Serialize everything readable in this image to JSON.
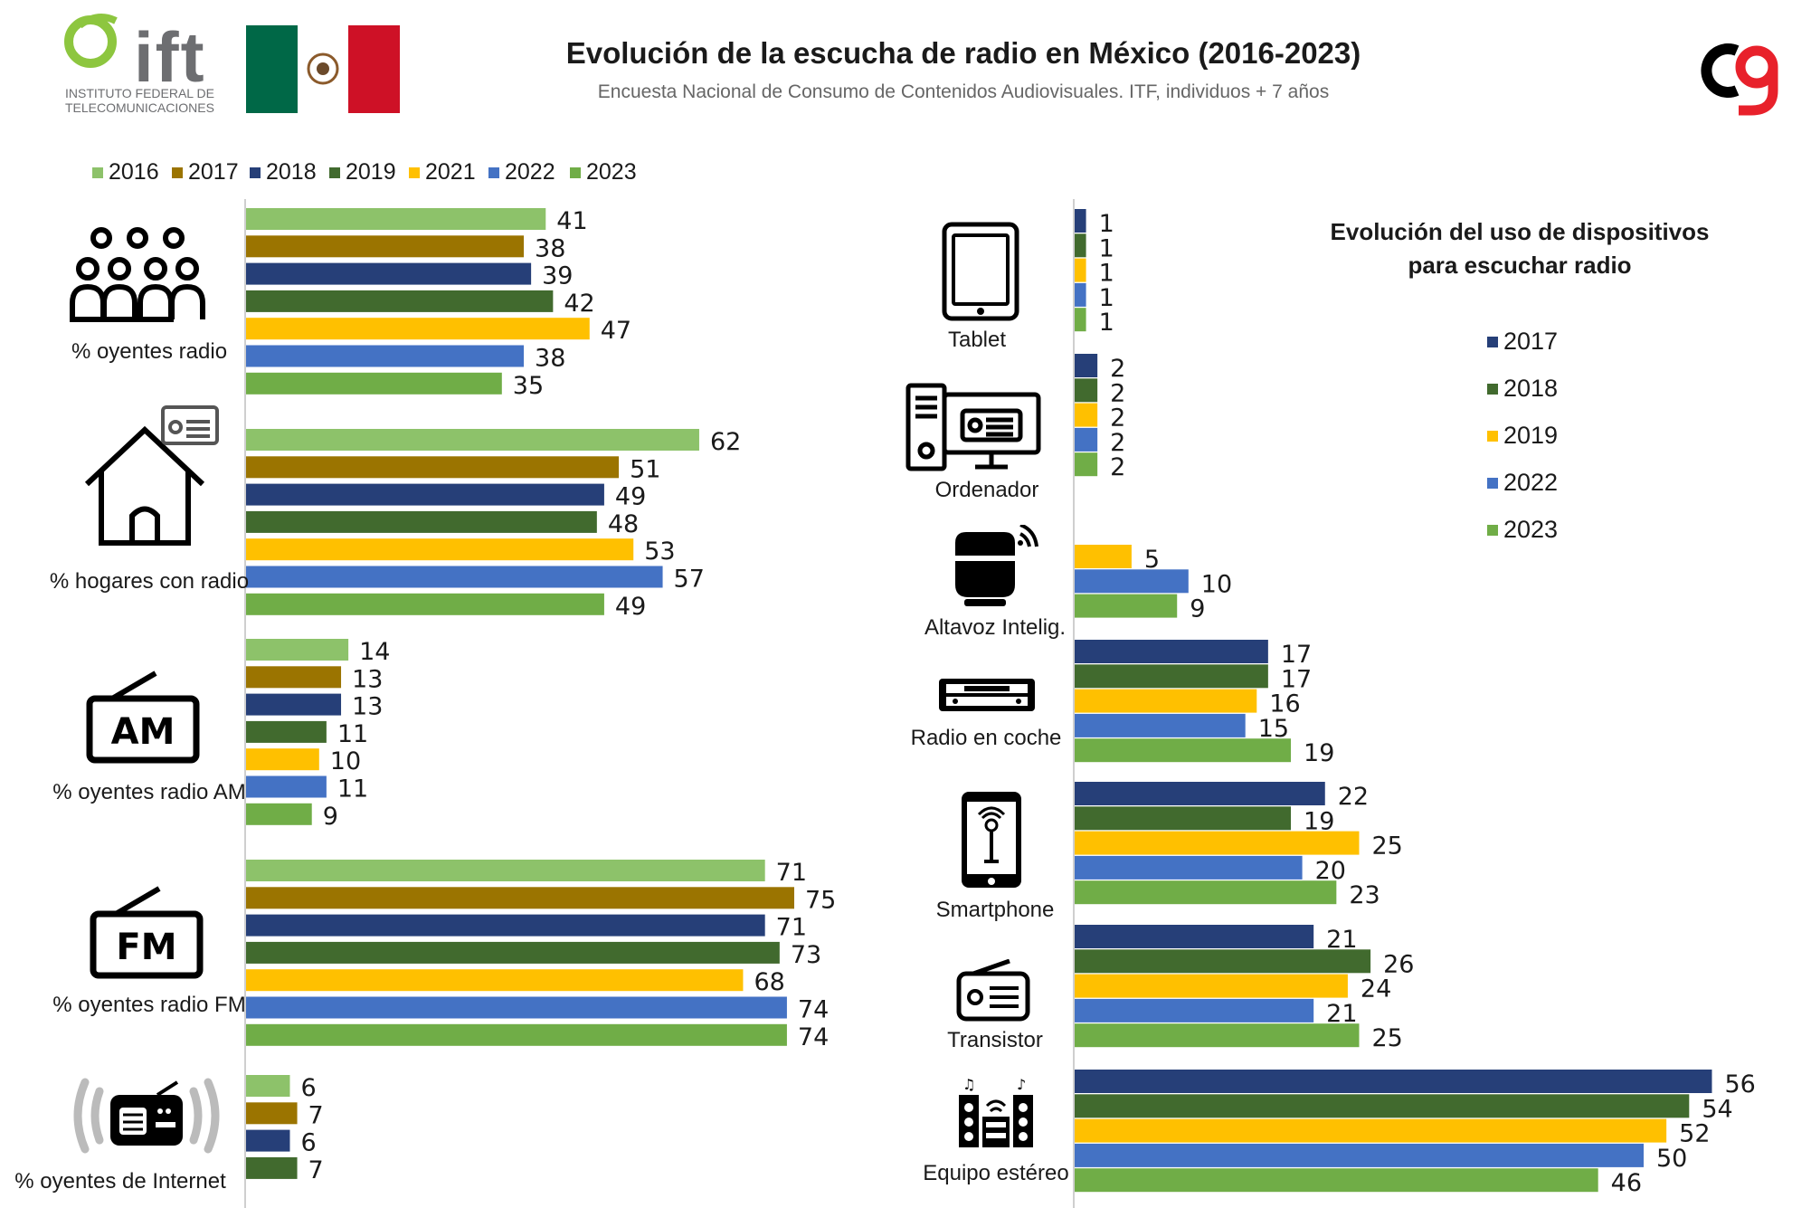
{
  "header": {
    "title": "Evolución de la escucha de radio en México (2016-2023)",
    "subtitle": "Encuesta Nacional de Consumo de Contenidos Audiovisuales. ITF, individuos + 7 años",
    "logo_text": "ift",
    "logo_sub_line1": "INSTITUTO FEDERAL DE",
    "logo_sub_line2": "TELECOMUNICACIONES"
  },
  "colors": {
    "2016": "#8dc26a",
    "2017": "#9b7400",
    "2017_right": "#263f78",
    "2018": "#263f78",
    "2018_right": "#416a2e",
    "2019": "#416a2e",
    "2019_right": "#ffc000",
    "2021": "#ffc000",
    "2022": "#4472c4",
    "2023": "#70ad47",
    "flag_green": "#006847",
    "flag_red": "#ce1126",
    "brand_red": "#e8212b"
  },
  "chart_data": [
    {
      "type": "bar",
      "orientation": "horizontal",
      "title": "",
      "legend": [
        "2016",
        "2017",
        "2018",
        "2019",
        "2021",
        "2022",
        "2023"
      ],
      "categories": [
        "% oyentes radio",
        "% hogares con radio",
        "% oyentes radio AM",
        "% oyentes radio FM",
        "% oyentes de Internet"
      ],
      "series": [
        {
          "name": "2016",
          "values": [
            41,
            62,
            14,
            71,
            6
          ]
        },
        {
          "name": "2017",
          "values": [
            38,
            51,
            13,
            75,
            7
          ]
        },
        {
          "name": "2018",
          "values": [
            39,
            49,
            13,
            71,
            6
          ]
        },
        {
          "name": "2019",
          "values": [
            42,
            48,
            11,
            73,
            7
          ]
        },
        {
          "name": "2021",
          "values": [
            47,
            53,
            10,
            68,
            null
          ]
        },
        {
          "name": "2022",
          "values": [
            38,
            57,
            11,
            74,
            null
          ]
        },
        {
          "name": "2023",
          "values": [
            35,
            49,
            9,
            74,
            null
          ]
        }
      ],
      "xlim": [
        0,
        80
      ]
    },
    {
      "type": "bar",
      "orientation": "horizontal",
      "title": "Evolución del uso de dispositivos para escuchar radio",
      "title_line1": "Evolución del uso de dispositivos",
      "title_line2": "para escuchar radio",
      "legend": [
        "2017",
        "2018",
        "2019",
        "2022",
        "2023"
      ],
      "categories": [
        "Tablet",
        "Ordenador",
        "Altavoz Intelig.",
        "Radio en coche",
        "Smartphone",
        "Transistor",
        "Equipo estéreo"
      ],
      "series": [
        {
          "name": "2017",
          "values": [
            1,
            2,
            null,
            17,
            22,
            21,
            56
          ]
        },
        {
          "name": "2018",
          "values": [
            1,
            2,
            null,
            17,
            19,
            26,
            54
          ]
        },
        {
          "name": "2019",
          "values": [
            1,
            2,
            5,
            16,
            25,
            24,
            52
          ]
        },
        {
          "name": "2022",
          "values": [
            1,
            2,
            10,
            15,
            20,
            21,
            50
          ]
        },
        {
          "name": "2023",
          "values": [
            1,
            2,
            9,
            19,
            23,
            25,
            46
          ]
        }
      ],
      "xlim": [
        0,
        60
      ]
    }
  ]
}
